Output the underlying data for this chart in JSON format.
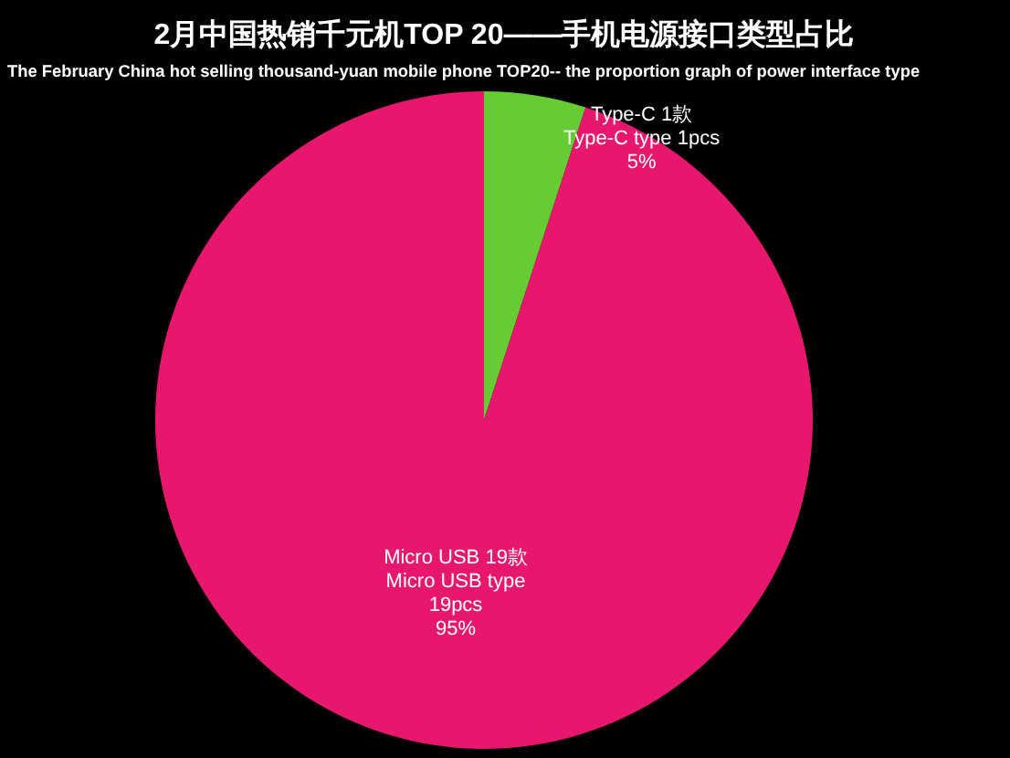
{
  "chart_data": {
    "type": "pie",
    "title": "2月中国热销千元机TOP 20——手机电源接口类型占比",
    "subtitle": "The February China hot selling thousand-yuan mobile phone TOP20-- the proportion graph of power interface type",
    "categories": [
      "Type-C 1款",
      "Micro USB 19款"
    ],
    "values": [
      5,
      95
    ],
    "colors": [
      "#66cc33",
      "#e8176e"
    ],
    "value_labels": [
      "Type-C type  1pcs\n5%",
      "Micro USB type\n19pcs\n95%"
    ]
  }
}
